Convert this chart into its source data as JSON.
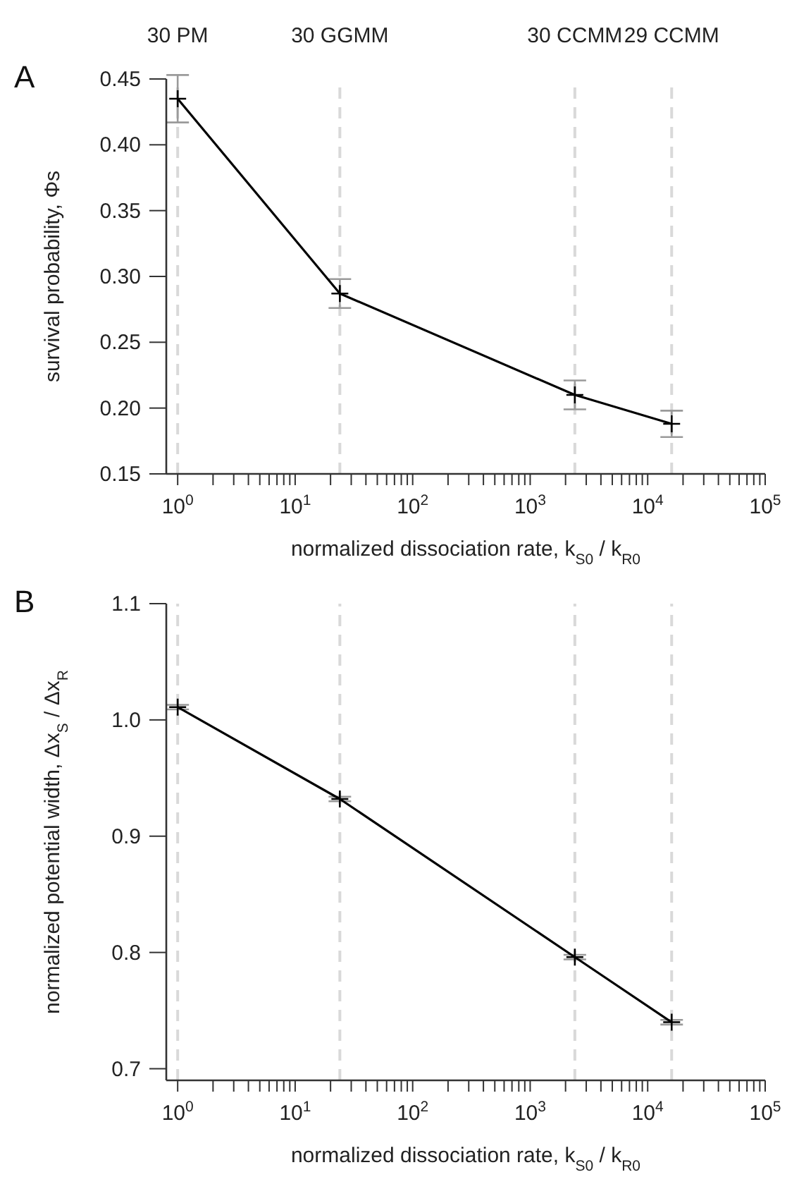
{
  "chart_data": [
    {
      "type": "line",
      "annotations": [
        "A"
      ],
      "xlabel": "normalized dissociation rate, k$_{S0}$ / k$_{R0}$",
      "ylabel": "survival probability, Φs",
      "x": [
        1,
        24,
        2400,
        16000
      ],
      "series": [
        {
          "color": "#000000",
          "values": [
            0.435,
            0.287,
            0.21,
            0.188
          ],
          "errors": [
            0.018,
            0.011,
            0.011,
            0.01
          ]
        }
      ],
      "log": "x",
      "marker": "cross",
      "line_style": "solid",
      "xlim": [
        0.8,
        100000
      ],
      "xticks": [
        {
          "value": 1,
          "label": "10$^{0}$"
        },
        {
          "value": 2,
          "label": null
        },
        {
          "value": 3,
          "label": null
        },
        {
          "value": 4,
          "label": null
        },
        {
          "value": 5,
          "label": null
        },
        {
          "value": 6,
          "label": null
        },
        {
          "value": 7,
          "label": null
        },
        {
          "value": 8,
          "label": null
        },
        {
          "value": 9,
          "label": null
        },
        {
          "value": 10,
          "label": "10$^{1}$"
        },
        {
          "value": 20,
          "label": null
        },
        {
          "value": 30,
          "label": null
        },
        {
          "value": 40,
          "label": null
        },
        {
          "value": 50,
          "label": null
        },
        {
          "value": 60,
          "label": null
        },
        {
          "value": 70,
          "label": null
        },
        {
          "value": 80,
          "label": null
        },
        {
          "value": 90,
          "label": null
        },
        {
          "value": 100,
          "label": "10$^{2}$"
        },
        {
          "value": 200,
          "label": null
        },
        {
          "value": 300,
          "label": null
        },
        {
          "value": 400,
          "label": null
        },
        {
          "value": 500,
          "label": null
        },
        {
          "value": 600,
          "label": null
        },
        {
          "value": 700,
          "label": null
        },
        {
          "value": 800,
          "label": null
        },
        {
          "value": 900,
          "label": null
        },
        {
          "value": 1000,
          "label": "10$^{3}$"
        },
        {
          "value": 2000,
          "label": null
        },
        {
          "value": 3000,
          "label": null
        },
        {
          "value": 4000,
          "label": null
        },
        {
          "value": 5000,
          "label": null
        },
        {
          "value": 6000,
          "label": null
        },
        {
          "value": 7000,
          "label": null
        },
        {
          "value": 8000,
          "label": null
        },
        {
          "value": 9000,
          "label": null
        },
        {
          "value": 10000,
          "label": "10$^{4}$"
        },
        {
          "value": 20000,
          "label": null
        },
        {
          "value": 30000,
          "label": null
        },
        {
          "value": 40000,
          "label": null
        },
        {
          "value": 50000,
          "label": null
        },
        {
          "value": 60000,
          "label": null
        },
        {
          "value": 70000,
          "label": null
        },
        {
          "value": 80000,
          "label": null
        },
        {
          "value": 90000,
          "label": null
        },
        {
          "value": 100000,
          "label": "10$^{5}$"
        }
      ],
      "ylim": [
        0.15,
        0.45
      ],
      "yticks": [
        {
          "value": 0.15,
          "label": "0.15"
        },
        {
          "value": 0.2,
          "label": "0.20"
        },
        {
          "value": 0.25,
          "label": "0.25"
        },
        {
          "value": 0.3,
          "label": "0.30"
        },
        {
          "value": 0.35,
          "label": "0.35"
        },
        {
          "value": 0.4,
          "label": "0.40"
        },
        {
          "value": 0.45,
          "label": "0.45"
        }
      ],
      "ref_lines": [
        {
          "axis": "x",
          "value": 1,
          "label": "30 PM",
          "color": "#d9d9d9",
          "line_style": "dashed"
        },
        {
          "axis": "x",
          "value": 24,
          "label": "30 GGMM",
          "color": "#d9d9d9",
          "line_style": "dashed"
        },
        {
          "axis": "x",
          "value": 2400,
          "label": "30 CCMM",
          "color": "#d9d9d9",
          "line_style": "dashed"
        },
        {
          "axis": "x",
          "value": 16000,
          "label": "29 CCMM",
          "color": "#d9d9d9",
          "line_style": "dashed"
        }
      ]
    },
    {
      "type": "line",
      "annotations": [
        "B"
      ],
      "xlabel": "normalized dissociation rate, k$_{S0}$ / k$_{R0}$",
      "ylabel": "normalized potential width, Δx$_{S}$ / Δx$_{R}$",
      "x": [
        1,
        24,
        2400,
        16000
      ],
      "series": [
        {
          "color": "#000000",
          "values": [
            1.011,
            0.932,
            0.796,
            0.74
          ],
          "errors": [
            0.002,
            0.002,
            0.002,
            0.002
          ]
        }
      ],
      "log": "x",
      "marker": "cross",
      "line_style": "solid",
      "xlim": [
        0.8,
        100000
      ],
      "xticks": [
        {
          "value": 1,
          "label": "10$^{0}$"
        },
        {
          "value": 2,
          "label": null
        },
        {
          "value": 3,
          "label": null
        },
        {
          "value": 4,
          "label": null
        },
        {
          "value": 5,
          "label": null
        },
        {
          "value": 6,
          "label": null
        },
        {
          "value": 7,
          "label": null
        },
        {
          "value": 8,
          "label": null
        },
        {
          "value": 9,
          "label": null
        },
        {
          "value": 10,
          "label": "10$^{1}$"
        },
        {
          "value": 20,
          "label": null
        },
        {
          "value": 30,
          "label": null
        },
        {
          "value": 40,
          "label": null
        },
        {
          "value": 50,
          "label": null
        },
        {
          "value": 60,
          "label": null
        },
        {
          "value": 70,
          "label": null
        },
        {
          "value": 80,
          "label": null
        },
        {
          "value": 90,
          "label": null
        },
        {
          "value": 100,
          "label": "10$^{2}$"
        },
        {
          "value": 200,
          "label": null
        },
        {
          "value": 300,
          "label": null
        },
        {
          "value": 400,
          "label": null
        },
        {
          "value": 500,
          "label": null
        },
        {
          "value": 600,
          "label": null
        },
        {
          "value": 700,
          "label": null
        },
        {
          "value": 800,
          "label": null
        },
        {
          "value": 900,
          "label": null
        },
        {
          "value": 1000,
          "label": "10$^{3}$"
        },
        {
          "value": 2000,
          "label": null
        },
        {
          "value": 3000,
          "label": null
        },
        {
          "value": 4000,
          "label": null
        },
        {
          "value": 5000,
          "label": null
        },
        {
          "value": 6000,
          "label": null
        },
        {
          "value": 7000,
          "label": null
        },
        {
          "value": 8000,
          "label": null
        },
        {
          "value": 9000,
          "label": null
        },
        {
          "value": 10000,
          "label": "10$^{4}$"
        },
        {
          "value": 20000,
          "label": null
        },
        {
          "value": 30000,
          "label": null
        },
        {
          "value": 40000,
          "label": null
        },
        {
          "value": 50000,
          "label": null
        },
        {
          "value": 60000,
          "label": null
        },
        {
          "value": 70000,
          "label": null
        },
        {
          "value": 80000,
          "label": null
        },
        {
          "value": 90000,
          "label": null
        },
        {
          "value": 100000,
          "label": "10$^{5}$"
        }
      ],
      "ylim": [
        0.69,
        1.1
      ],
      "yticks": [
        {
          "value": 0.7,
          "label": "0.7"
        },
        {
          "value": 0.8,
          "label": "0.8"
        },
        {
          "value": 0.9,
          "label": "0.9"
        },
        {
          "value": 1,
          "label": "1.0"
        },
        {
          "value": 1.1,
          "label": "1.1"
        }
      ],
      "ref_lines": [
        {
          "axis": "x",
          "value": 1,
          "color": "#d9d9d9",
          "line_style": "dashed"
        },
        {
          "axis": "x",
          "value": 24,
          "color": "#d9d9d9",
          "line_style": "dashed"
        },
        {
          "axis": "x",
          "value": 2400,
          "color": "#d9d9d9",
          "line_style": "dashed"
        },
        {
          "axis": "x",
          "value": 16000,
          "color": "#d9d9d9",
          "line_style": "dashed"
        }
      ]
    }
  ]
}
